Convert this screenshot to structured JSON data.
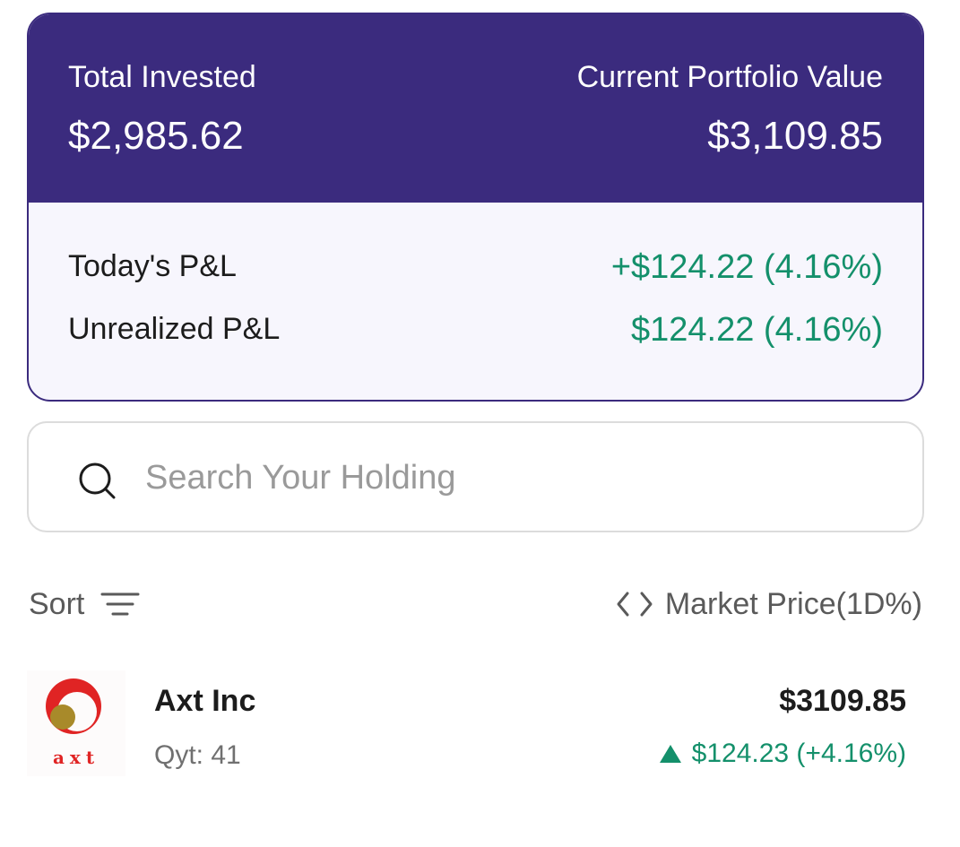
{
  "summary": {
    "total_invested_label": "Total Invested",
    "total_invested_value": "$2,985.62",
    "current_value_label": "Current Portfolio Value",
    "current_value_value": "$3,109.85",
    "todays_pnl_label": "Today's P&L",
    "todays_pnl_value": "+$124.22 (4.16%)",
    "unrealized_pnl_label": "Unrealized P&L",
    "unrealized_pnl_value": "$124.22 (4.16%)"
  },
  "search": {
    "placeholder": "Search Your Holding",
    "icon": "search-icon"
  },
  "controls": {
    "sort_label": "Sort",
    "sort_icon": "sort-lines-icon",
    "price_toggle_label": "Market Price(1D%)",
    "price_toggle_icon": "code-arrows-icon"
  },
  "holdings": [
    {
      "logo_text": "axt",
      "name": "Axt Inc",
      "qty": "Qyt: 41",
      "price": "$3109.85",
      "change": "$124.23 (+4.16%)",
      "trend_icon": "up-triangle-icon"
    }
  ],
  "colors": {
    "header_bg": "#3b2b7e",
    "card_bg": "#f7f6fd",
    "positive": "#14906b",
    "logo_red": "#e02424",
    "logo_gold": "#a88a2a"
  }
}
